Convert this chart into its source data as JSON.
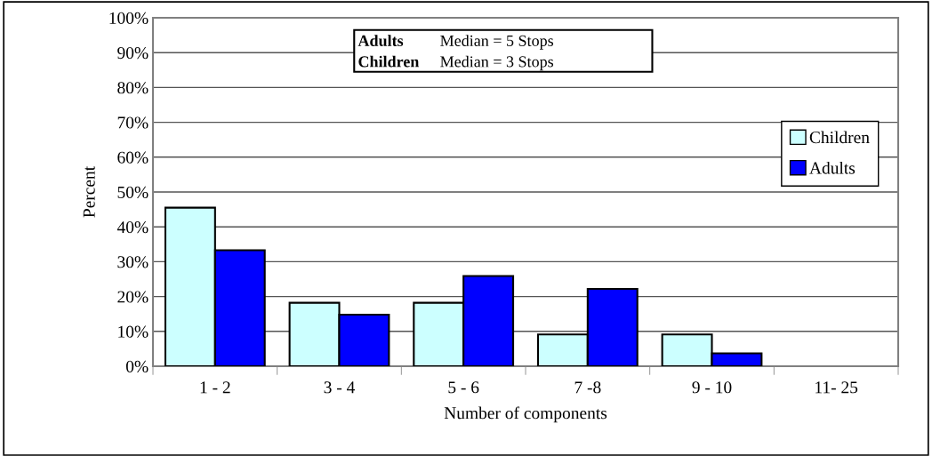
{
  "chart_data": {
    "type": "bar",
    "xlabel": "Number of components",
    "ylabel": "Percent",
    "categories": [
      "1 - 2",
      "3 - 4",
      "5 - 6",
      "7 -8",
      "9 - 10",
      "11- 25"
    ],
    "series": [
      {
        "name": "Children",
        "color": "#ccffff",
        "values": [
          45.5,
          18.2,
          18.2,
          9.1,
          9.1,
          0
        ]
      },
      {
        "name": "Adults",
        "color": "#0000ff",
        "values": [
          33.3,
          14.8,
          25.9,
          22.2,
          3.7,
          0
        ]
      }
    ],
    "ylim": [
      0,
      100
    ],
    "yticks": [
      {
        "value": 0,
        "label": "0%"
      },
      {
        "value": 10,
        "label": "10%"
      },
      {
        "value": 20,
        "label": "20%"
      },
      {
        "value": 30,
        "label": "30%"
      },
      {
        "value": 40,
        "label": "40%"
      },
      {
        "value": 50,
        "label": "50%"
      },
      {
        "value": 60,
        "label": "60%"
      },
      {
        "value": 70,
        "label": "70%"
      },
      {
        "value": 80,
        "label": "80%"
      },
      {
        "value": 90,
        "label": "90%"
      },
      {
        "value": 100,
        "label": "100%"
      }
    ],
    "grid": "y",
    "legend": "right",
    "annotations": [
      "Adults",
      "Median = 5 Stops",
      "Children",
      "Median = 3 Stops"
    ]
  }
}
